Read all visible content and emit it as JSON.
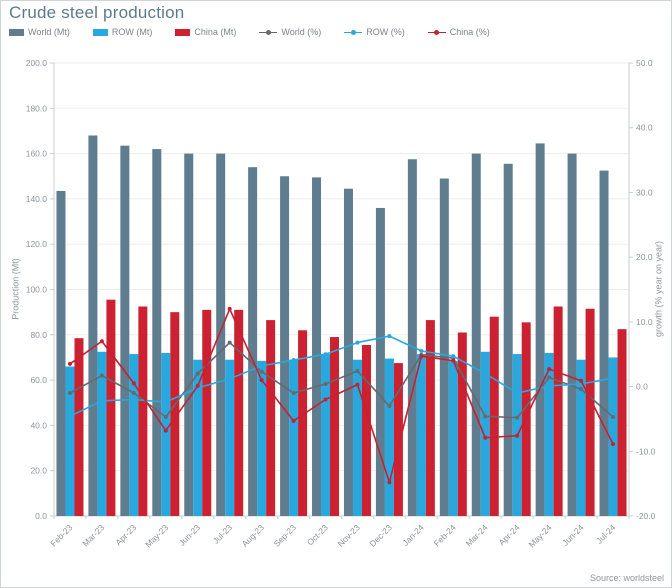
{
  "title": "Crude steel production",
  "source": "Source: worldsteel",
  "colors": {
    "world_bar": "#5f7d8e",
    "row_bar": "#29a8df",
    "china_bar": "#cb2130",
    "world_line": "#68696d",
    "row_line": "#29a8df",
    "china_line": "#c22232",
    "grid": "#ededed",
    "axis": "#c9cdcf",
    "tick_text": "#8d959b",
    "title_text": "#5b7b8c"
  },
  "legend": {
    "items": [
      {
        "label": "World (Mt)",
        "swatch": "bar",
        "color": "#5f7d8e"
      },
      {
        "label": "ROW (Mt)",
        "swatch": "bar",
        "color": "#29a8df"
      },
      {
        "label": "China (Mt)",
        "swatch": "bar",
        "color": "#cb2130"
      },
      {
        "label": "World (%)",
        "swatch": "line",
        "color": "#68696d"
      },
      {
        "label": "ROW (%)",
        "swatch": "line",
        "color": "#29a8df"
      },
      {
        "label": "China (%)",
        "swatch": "line",
        "color": "#c22232"
      }
    ]
  },
  "chart_data": {
    "type": "bar",
    "subtype": "grouped bars with overlaid lines, dual y-axes",
    "categories": [
      "Feb-23",
      "Mar-23",
      "Apr-23",
      "May-23",
      "Jun-23",
      "Jul-23",
      "Aug-23",
      "Sep-23",
      "Oct-23",
      "Nov-23",
      "Dec-23",
      "Jan-24",
      "Feb-24",
      "Mar-24",
      "Apr-24",
      "May-24",
      "Jun-24",
      "Jul-24"
    ],
    "series": [
      {
        "name": "World (Mt)",
        "type": "bar",
        "axis": "left",
        "color": "#5f7d8e",
        "values": [
          143.5,
          168.0,
          163.5,
          162.0,
          160.0,
          160.0,
          154.0,
          150.0,
          149.5,
          144.5,
          136.0,
          157.5,
          149.0,
          160.0,
          155.5,
          164.5,
          160.0,
          152.5
        ]
      },
      {
        "name": "ROW (Mt)",
        "type": "bar",
        "axis": "left",
        "color": "#29a8df",
        "values": [
          66.0,
          72.5,
          71.5,
          72.0,
          69.0,
          69.0,
          68.5,
          69.0,
          71.5,
          69.0,
          69.5,
          71.5,
          68.5,
          72.5,
          71.5,
          72.0,
          69.0,
          70.0
        ]
      },
      {
        "name": "China (Mt)",
        "type": "bar",
        "axis": "left",
        "color": "#cb2130",
        "values": [
          78.5,
          95.5,
          92.5,
          90.0,
          91.0,
          91.0,
          86.5,
          82.0,
          79.0,
          75.5,
          67.5,
          86.5,
          81.0,
          88.0,
          85.5,
          92.5,
          91.5,
          82.5
        ]
      },
      {
        "name": "World (%)",
        "type": "line",
        "axis": "right",
        "color": "#68696d",
        "values": [
          -1.0,
          1.7,
          -1.0,
          -4.7,
          2.0,
          6.8,
          2.3,
          -1.0,
          0.4,
          2.4,
          -3.0,
          4.9,
          4.4,
          -4.6,
          -4.8,
          1.4,
          -0.4,
          -4.7
        ]
      },
      {
        "name": "ROW (%)",
        "type": "line",
        "axis": "right",
        "color": "#29a8df",
        "values": [
          -4.6,
          -2.2,
          -2.0,
          -2.4,
          -0.2,
          1.2,
          3.2,
          4.1,
          5.0,
          6.8,
          7.8,
          5.5,
          4.7,
          2.0,
          -1.0,
          0.1,
          0.4,
          1.3
        ]
      },
      {
        "name": "China (%)",
        "type": "line",
        "axis": "right",
        "color": "#c22232",
        "values": [
          3.5,
          7.0,
          0.5,
          -6.8,
          0.1,
          12.0,
          1.0,
          -5.3,
          -2.0,
          0.3,
          -14.8,
          4.7,
          4.0,
          -7.9,
          -7.6,
          2.7,
          0.9,
          -8.9
        ]
      }
    ],
    "left_axis": {
      "label": "Production (Mt)",
      "min": 0,
      "max": 200,
      "step": 20,
      "ticks": [
        "0.0",
        "20.0",
        "40.0",
        "60.0",
        "80.0",
        "100.0",
        "120.0",
        "140.0",
        "160.0",
        "180.0",
        "200.0"
      ]
    },
    "right_axis": {
      "label": "growth (% year on year)",
      "min": -20,
      "max": 50,
      "step": 10,
      "ticks": [
        "-20.0",
        "-10.0",
        "0.0",
        "10.0",
        "20.0",
        "30.0",
        "40.0",
        "50.0"
      ]
    },
    "grid": "horizontal",
    "legend_position": "top-left"
  }
}
